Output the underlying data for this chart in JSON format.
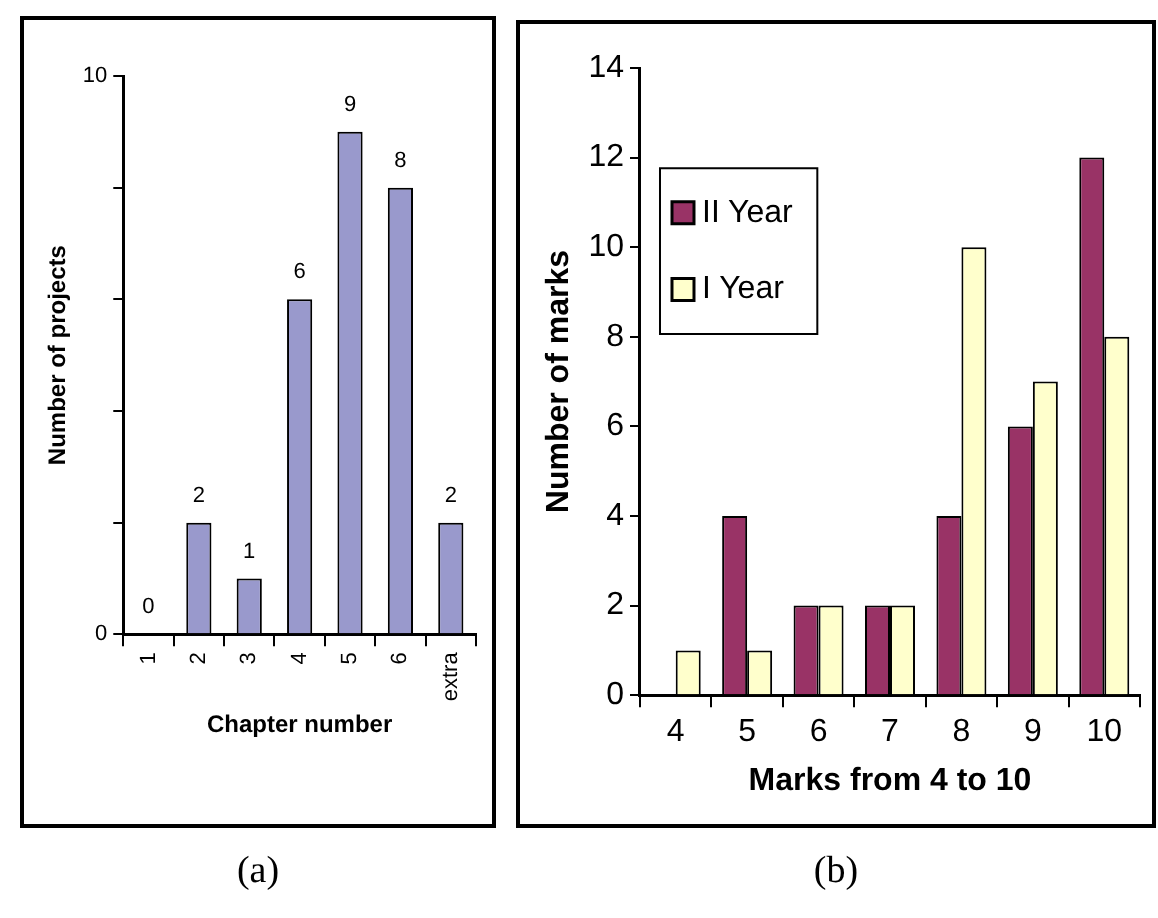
{
  "chart_data": [
    {
      "type": "bar",
      "xlabel": "Chapter number",
      "ylabel": "Number of projects",
      "categories": [
        "1",
        "2",
        "3",
        "4",
        "5",
        "6",
        "extra"
      ],
      "values": [
        0,
        2,
        1,
        6,
        9,
        8,
        2
      ],
      "color": "#9999cc",
      "ylim": [
        0,
        10
      ],
      "yticks": [
        0,
        {
          "value": 2,
          "label": null
        },
        {
          "value": 4,
          "label": null
        },
        {
          "value": 6,
          "label": null
        },
        {
          "value": 8,
          "label": null
        },
        10
      ],
      "data_labels": true,
      "grid": false,
      "legend": false,
      "annotations": [
        "(a)"
      ]
    },
    {
      "type": "bar",
      "xlabel": "Marks from 4 to 10",
      "ylabel": "Number of marks",
      "categories": [
        "4",
        "5",
        "6",
        "7",
        "8",
        "9",
        "10"
      ],
      "series": [
        {
          "name": "II Year",
          "color": "#993366",
          "values": [
            0,
            4,
            2,
            2,
            4,
            6,
            12
          ]
        },
        {
          "name": "I Year",
          "color": "#ffffcc",
          "values": [
            1,
            1,
            2,
            2,
            10,
            7,
            8
          ]
        }
      ],
      "ylim": [
        0,
        14
      ],
      "yticks": [
        0,
        2,
        4,
        6,
        8,
        10,
        12,
        14
      ],
      "grid": false,
      "legend": "top left",
      "annotations": [
        "(b)"
      ]
    }
  ]
}
